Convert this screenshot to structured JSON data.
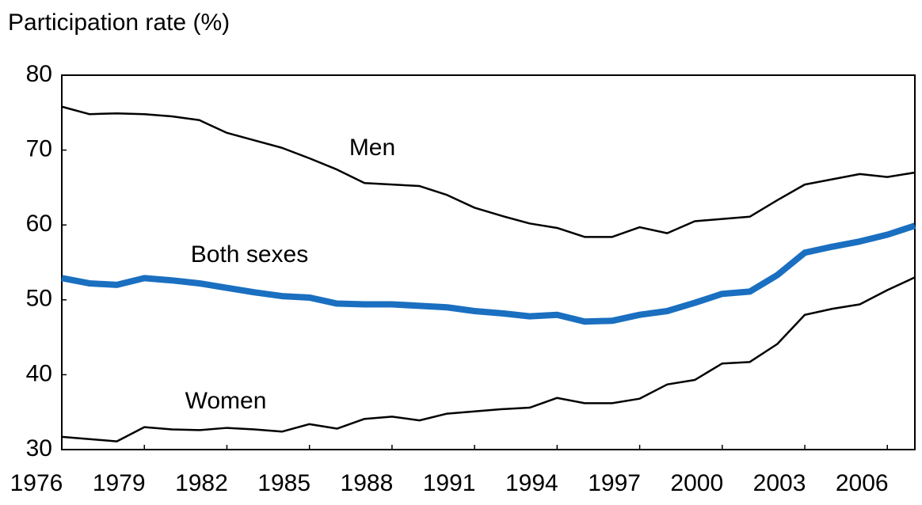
{
  "chart_data": {
    "type": "line",
    "y_label": "Participation rate (%)",
    "x": [
      1976,
      1977,
      1978,
      1979,
      1980,
      1981,
      1982,
      1983,
      1984,
      1985,
      1986,
      1987,
      1988,
      1989,
      1990,
      1991,
      1992,
      1993,
      1994,
      1995,
      1996,
      1997,
      1998,
      1999,
      2000,
      2001,
      2002,
      2003,
      2004,
      2005,
      2006,
      2007
    ],
    "series": [
      {
        "name": "Men",
        "color": "#000000",
        "values": [
          75.8,
          74.8,
          74.9,
          74.8,
          74.5,
          74.0,
          72.3,
          71.3,
          70.3,
          68.9,
          67.4,
          65.6,
          65.4,
          65.2,
          64.0,
          62.3,
          61.2,
          60.2,
          59.6,
          58.4,
          58.4,
          59.7,
          58.9,
          60.5,
          60.8,
          61.1,
          63.3,
          65.4,
          66.1,
          66.8,
          66.4,
          67.0
        ]
      },
      {
        "name": "Both sexes",
        "color": "#1a6fc0",
        "values": [
          52.9,
          52.2,
          52.0,
          52.9,
          52.6,
          52.2,
          51.6,
          51.0,
          50.5,
          50.3,
          49.5,
          49.4,
          49.4,
          49.2,
          49.0,
          48.5,
          48.2,
          47.8,
          48.0,
          47.1,
          47.2,
          48.0,
          48.5,
          49.6,
          50.8,
          51.1,
          53.3,
          56.3,
          57.1,
          57.8,
          58.7,
          59.9
        ]
      },
      {
        "name": "Women",
        "color": "#000000",
        "values": [
          31.7,
          31.4,
          31.1,
          33.0,
          32.7,
          32.6,
          32.9,
          32.7,
          32.4,
          33.4,
          32.8,
          34.1,
          34.4,
          33.9,
          34.8,
          35.1,
          35.4,
          35.6,
          36.9,
          36.2,
          36.2,
          36.8,
          38.7,
          39.3,
          41.5,
          41.7,
          44.1,
          48.0,
          48.8,
          49.4,
          51.3,
          53.0
        ]
      }
    ],
    "xlim": [
      1976,
      2007
    ],
    "xticks": [
      1976,
      1979,
      1982,
      1985,
      1988,
      1991,
      1994,
      1997,
      2000,
      2003,
      2006
    ],
    "ylim": [
      30,
      80
    ],
    "yticks": [
      30,
      40,
      50,
      60,
      70,
      80
    ],
    "grid": false
  }
}
